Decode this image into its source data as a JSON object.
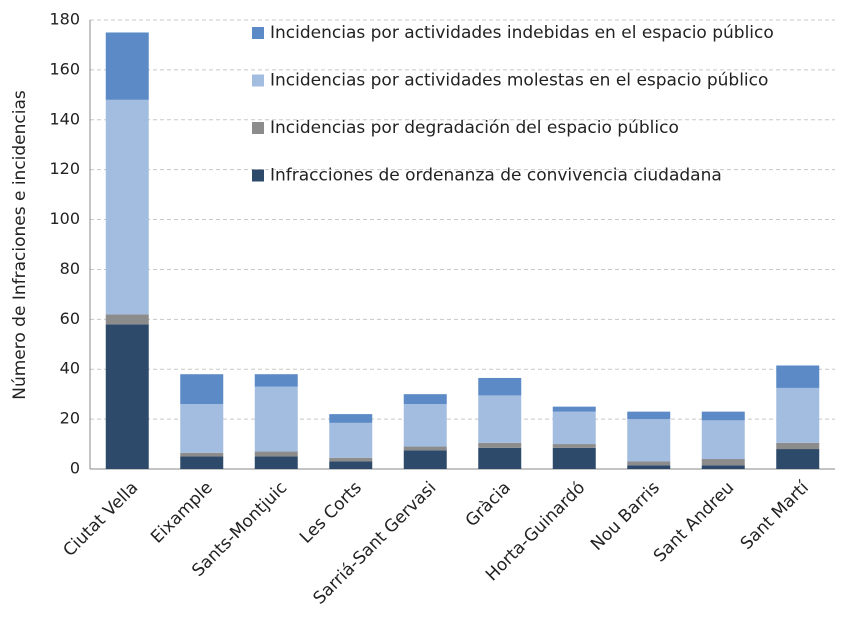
{
  "chart_data": {
    "type": "stacked_bar",
    "y_label": "Número de Infraciones e incidencias",
    "categories": [
      "Ciutat Vella",
      "Eixample",
      "Sants-Montjuic",
      "Les Corts",
      "Sarriá-Sant Gervasi",
      "Gràcia",
      "Horta-Guinardó",
      "Nou Barris",
      "Sant Andreu",
      "Sant Martí"
    ],
    "series": [
      {
        "name": "Infracciones de ordenanza de convivencia ciudadana",
        "color": "#2e4a6b",
        "values": [
          58,
          5,
          5,
          3,
          7.5,
          8.5,
          8.5,
          1.5,
          1.5,
          8
        ]
      },
      {
        "name": "Incidencias por degradación del espacio público",
        "color": "#8c8c8c",
        "values": [
          4,
          1.5,
          2,
          1.5,
          1.5,
          2,
          1.5,
          1.5,
          2.5,
          2.5
        ]
      },
      {
        "name": "Incidencias por actividades molestas en el espacio público",
        "color": "#a3bde0",
        "values": [
          86,
          19.5,
          26,
          14,
          17,
          19,
          13,
          17,
          15.5,
          22
        ]
      },
      {
        "name": "Incidencias por actividades indebidas en el espacio público",
        "color": "#5b8ac6",
        "values": [
          27,
          12,
          5,
          3.5,
          4,
          7,
          2,
          3,
          3.5,
          9
        ]
      }
    ],
    "ylim": [
      0,
      180
    ],
    "yticks": [
      0,
      20,
      40,
      60,
      80,
      100,
      120,
      140,
      160,
      180
    ],
    "grid": true,
    "legend": "top-right"
  }
}
